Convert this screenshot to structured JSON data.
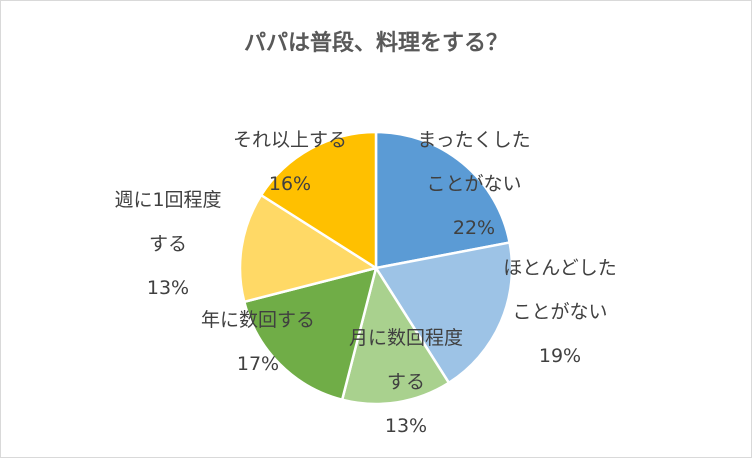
{
  "chart_data": {
    "type": "pie",
    "title": "パパは普段、料理をする？",
    "slices": [
      {
        "label_lines": [
          "まったくした",
          "ことがない"
        ],
        "value": 22,
        "value_label": "22%",
        "color": "#5b9bd5"
      },
      {
        "label_lines": [
          "ほとんどした",
          "ことがない"
        ],
        "value": 19,
        "value_label": "19%",
        "color": "#9dc3e6"
      },
      {
        "label_lines": [
          "月に数回程度",
          "する"
        ],
        "value": 13,
        "value_label": "13%",
        "color": "#a9d18e"
      },
      {
        "label_lines": [
          "年に数回する"
        ],
        "value": 17,
        "value_label": "17%",
        "color": "#70ad47"
      },
      {
        "label_lines": [
          "週に1回程度",
          "する"
        ],
        "value": 13,
        "value_label": "13%",
        "color": "#ffd966"
      },
      {
        "label_lines": [
          "それ以上する"
        ],
        "value": 16,
        "value_label": "16%",
        "color": "#ffc000"
      }
    ],
    "legend": "none",
    "start_angle_deg": 0,
    "direction": "clockwise"
  }
}
